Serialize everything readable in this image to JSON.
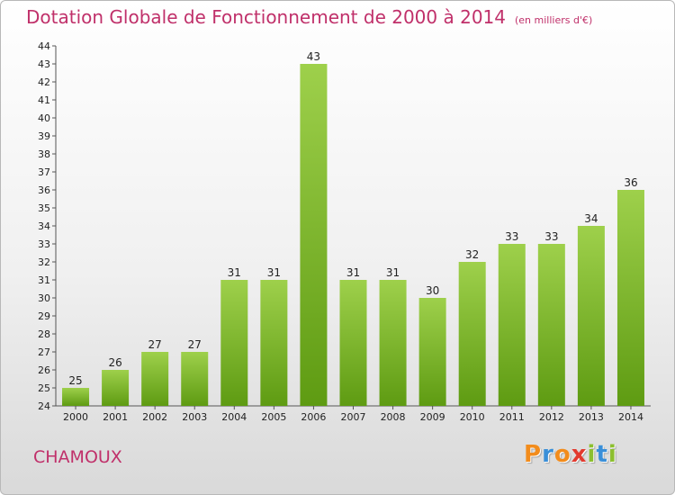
{
  "header": {
    "title": "Dotation Globale de Fonctionnement de 2000 à 2014",
    "subtitle": "(en milliers d'€)"
  },
  "footer": {
    "place": "CHAMOUX",
    "logo": [
      "P",
      "r",
      "o",
      "x",
      "i",
      "t",
      "i"
    ]
  },
  "colors": {
    "title": "#c0306a",
    "bar_light": "#9ed04b",
    "bar_dark": "#5e9b12",
    "logo": [
      "#f28c1c",
      "#3a8fd8",
      "#f28c1c",
      "#e23a2f",
      "#8cbf2f",
      "#3a8fd8",
      "#8cbf2f"
    ]
  },
  "chart_data": {
    "type": "bar",
    "categories": [
      "2000",
      "2001",
      "2002",
      "2003",
      "2004",
      "2005",
      "2006",
      "2007",
      "2008",
      "2009",
      "2010",
      "2011",
      "2012",
      "2013",
      "2014"
    ],
    "values": [
      25,
      26,
      27,
      27,
      31,
      31,
      43,
      31,
      31,
      30,
      32,
      33,
      33,
      34,
      36
    ],
    "ylim": [
      24,
      44
    ],
    "yticks": [
      24,
      25,
      26,
      27,
      28,
      29,
      30,
      31,
      32,
      33,
      34,
      35,
      36,
      37,
      38,
      39,
      40,
      41,
      42,
      43,
      44
    ],
    "grid": false,
    "xlabel": "",
    "ylabel": ""
  }
}
